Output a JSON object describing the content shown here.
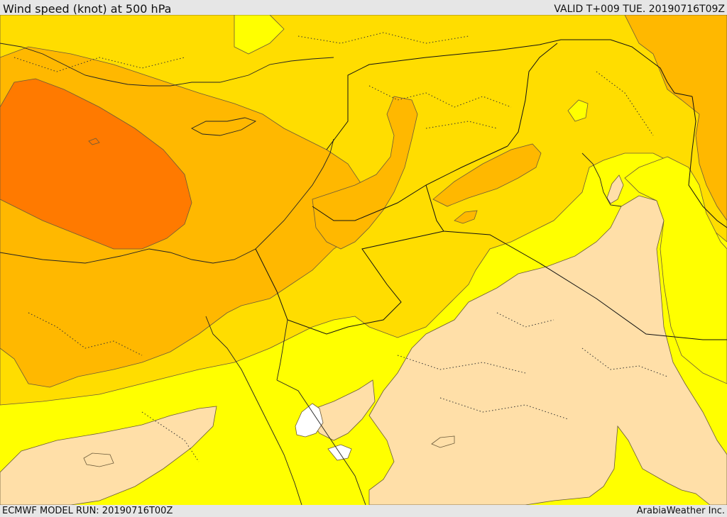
{
  "header": {
    "title": "Wind speed (knot) at 500 hPa",
    "valid": "VALID T+009 TUE. 20190716T09Z"
  },
  "footer": {
    "model_run": "ECMWF MODEL RUN: 20190716T00Z",
    "credit": "ArabiaWeather Inc."
  },
  "map": {
    "variable": "wind speed",
    "level_hpa": 500,
    "units": "knot",
    "colors": {
      "band_calm": "#ffdfa8",
      "band_low": "#ffff00",
      "band_mid": "#ffdd00",
      "band_high": "#ffb800",
      "band_max": "#ff7a00",
      "water_gap": "#ffffff"
    }
  }
}
